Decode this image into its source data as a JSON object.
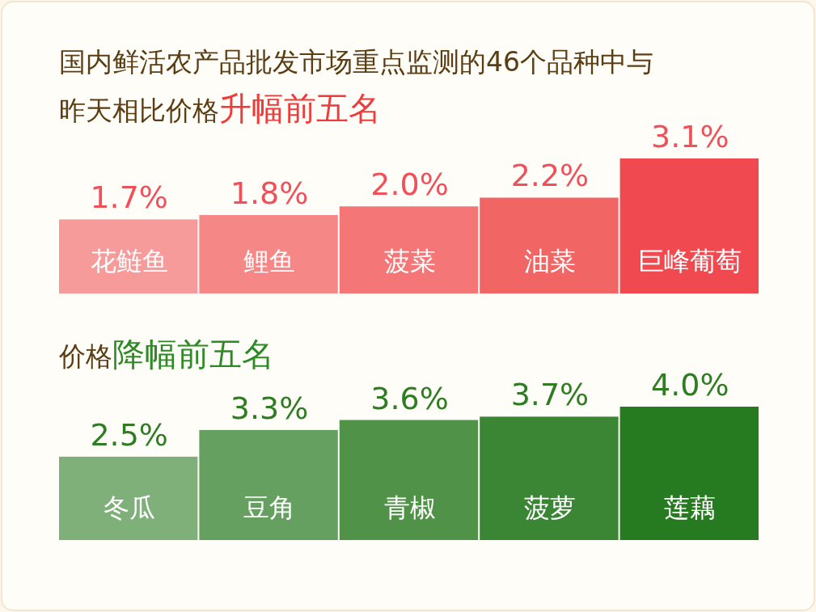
{
  "chart_data": [
    {
      "type": "bar",
      "title": "国内鲜活农产品批发市场重点监测的46个品种中与昨天相比价格**升幅前五名**",
      "categories": [
        "花鲢鱼",
        "鲤鱼",
        "菠菜",
        "油菜",
        "巨峰葡萄"
      ],
      "values": [
        1.7,
        1.8,
        2.0,
        2.2,
        3.1
      ],
      "value_labels": [
        "1.7%",
        "1.8%",
        "2.0%",
        "2.2%",
        "3.1%"
      ],
      "colors": [
        "#f79a9a",
        "#f58787",
        "#f47676",
        "#f26565",
        "#f04a50"
      ]
    },
    {
      "type": "bar",
      "title": "价格**降幅前五名**",
      "categories": [
        "冬瓜",
        "豆角",
        "青椒",
        "菠萝",
        "莲藕"
      ],
      "values": [
        2.5,
        3.3,
        3.6,
        3.7,
        4.0
      ],
      "value_labels": [
        "2.5%",
        "3.3%",
        "3.6%",
        "3.7%",
        "4.0%"
      ],
      "colors": [
        "#7fb07a",
        "#66a060",
        "#4f9248",
        "#3a8634",
        "#267a1f"
      ]
    }
  ]
}
